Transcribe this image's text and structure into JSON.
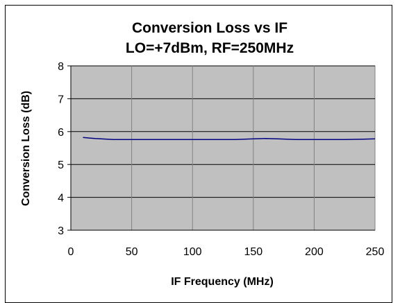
{
  "chart_data": {
    "type": "line",
    "title": "Conversion Loss vs IF",
    "subtitle": "LO=+7dBm, RF=250MHz",
    "xlabel": "IF Frequency (MHz)",
    "ylabel": "Conversion Loss (dB)",
    "xlim": [
      0,
      250
    ],
    "ylim": [
      3,
      8
    ],
    "xticks": [
      "0",
      "50",
      "100",
      "150",
      "200",
      "250"
    ],
    "yticks": [
      "3",
      "4",
      "5",
      "6",
      "7",
      "8"
    ],
    "grid": true,
    "legend": "none",
    "plot_background": "#c0c0c0",
    "series": [
      {
        "color": "#000080",
        "x": [
          10,
          20,
          35,
          50,
          75,
          100,
          125,
          135,
          150,
          160,
          170,
          185,
          200,
          225,
          240,
          250
        ],
        "y": [
          5.82,
          5.79,
          5.76,
          5.76,
          5.76,
          5.76,
          5.76,
          5.76,
          5.78,
          5.79,
          5.78,
          5.76,
          5.76,
          5.76,
          5.77,
          5.78
        ]
      }
    ]
  }
}
